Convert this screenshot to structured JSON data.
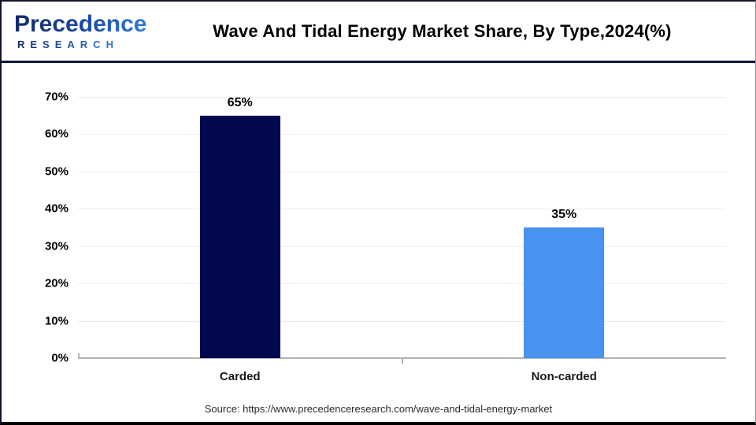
{
  "header": {
    "logo": {
      "line1": "Precedence",
      "line2": "RESEARCH"
    },
    "title": "Wave And Tidal Energy Market Share, By Type,2024(%)"
  },
  "chart_data": {
    "type": "bar",
    "title": "Wave And Tidal Energy Market Share, By Type,2024(%)",
    "categories": [
      "Carded",
      "Non-carded"
    ],
    "values": [
      65,
      35
    ],
    "value_labels": [
      "65%",
      "35%"
    ],
    "bar_colors": [
      "#02084f",
      "#4793ef"
    ],
    "ylim": [
      0,
      70
    ],
    "ytick_step": 10,
    "ytick_labels": [
      "0%",
      "10%",
      "20%",
      "30%",
      "40%",
      "50%",
      "60%",
      "70%"
    ],
    "grid": true,
    "gridline_color": "#ececec",
    "axis_color": "#b3b3b3",
    "legend": "none"
  },
  "footer": {
    "source": "Source: https://www.precedenceresearch.com/wave-and-tidal-energy-market"
  }
}
